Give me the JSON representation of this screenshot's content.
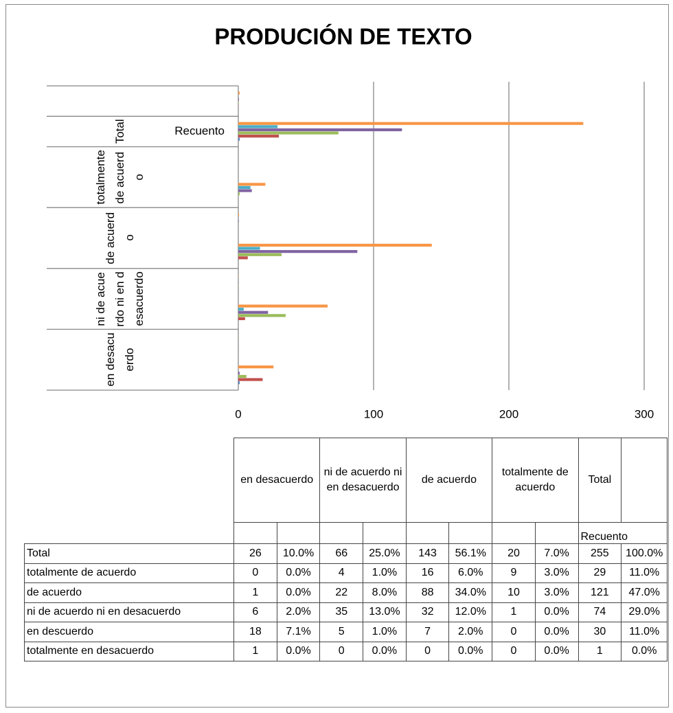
{
  "chart_data": {
    "type": "bar",
    "orientation": "horizontal",
    "title": "PRODUCIÓN DE TEXTO",
    "category_groups": [
      "en desacuerdo",
      "ni de acuerdo ni en desacuerdo",
      "de acuerdo",
      "totalmente de acuerdo",
      "Total",
      null
    ],
    "categories": [
      null,
      null,
      null,
      null,
      null,
      null,
      null,
      null,
      "Recuento",
      null
    ],
    "series": [
      {
        "name": "Total",
        "color": "#f79646",
        "values": [
          26,
          0.1,
          66,
          0.25,
          143,
          0.561,
          20,
          0.07,
          255,
          1.0
        ],
        "value_labels": [
          "26",
          "10.0%",
          "66",
          "25.0%",
          "143",
          "56.1%",
          "20",
          "7.0%",
          "255",
          "100.0%"
        ]
      },
      {
        "name": "totalmente de acuerdo",
        "color": "#4bacc6",
        "values": [
          0,
          0.0,
          4,
          0.01,
          16,
          0.06,
          9,
          0.03,
          29,
          0.11
        ],
        "value_labels": [
          "0",
          "0.0%",
          "4",
          "1.0%",
          "16",
          "6.0%",
          "9",
          "3.0%",
          "29",
          "11.0%"
        ]
      },
      {
        "name": "de acuerdo",
        "color": "#8064a2",
        "values": [
          1,
          0.0,
          22,
          0.08,
          88,
          0.34,
          10,
          0.03,
          121,
          0.47
        ],
        "value_labels": [
          "1",
          "0.0%",
          "22",
          "8.0%",
          "88",
          "34.0%",
          "10",
          "3.0%",
          "121",
          "47.0%"
        ]
      },
      {
        "name": "ni de acuerdo ni en desacuerdo",
        "color": "#9bbb59",
        "values": [
          6,
          0.02,
          35,
          0.13,
          32,
          0.12,
          1,
          0.0,
          74,
          0.29
        ],
        "value_labels": [
          "6",
          "2.0%",
          "35",
          "13.0%",
          "32",
          "12.0%",
          "1",
          "0.0%",
          "74",
          "29.0%"
        ]
      },
      {
        "name": "en descuerdo",
        "color": "#c0504d",
        "values": [
          18,
          0.071,
          5,
          0.01,
          7,
          0.02,
          0,
          0.0,
          30,
          0.11
        ],
        "value_labels": [
          "18",
          "7.1%",
          "5",
          "1.0%",
          "7",
          "2.0%",
          "0",
          "0.0%",
          "30",
          "11.0%"
        ]
      },
      {
        "name": "totalmente en desacuerdo",
        "color": "#4f81bd",
        "values": [
          1,
          0.0,
          0,
          0.0,
          0,
          0.0,
          0,
          0.0,
          1,
          0.0
        ],
        "value_labels": [
          "1",
          "0.0%",
          "0",
          "0.0%",
          "0",
          "0.0%",
          "0",
          "0.0%",
          "1",
          "0.0%"
        ]
      }
    ],
    "xlim": [
      0,
      300
    ],
    "xticks": [
      0,
      100,
      200,
      300
    ],
    "grid": true
  }
}
